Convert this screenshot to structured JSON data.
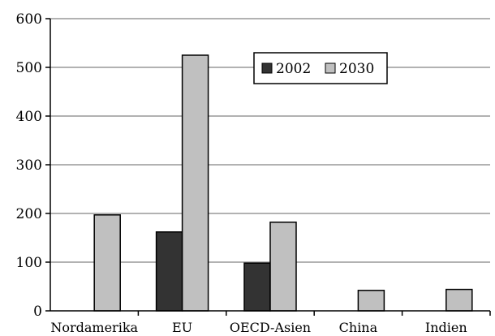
{
  "chart_data": {
    "type": "bar",
    "categories": [
      "Nordamerika",
      "EU",
      "OECD-Asien",
      "China",
      "Indien"
    ],
    "series": [
      {
        "name": "2002",
        "values": [
          0,
          162,
          98,
          0,
          0
        ],
        "color": "#333333"
      },
      {
        "name": "2030",
        "values": [
          197,
          525,
          182,
          42,
          44
        ],
        "color": "#c0c0c0"
      }
    ],
    "ylim": [
      0,
      600
    ],
    "yticks": [
      0,
      100,
      200,
      300,
      400,
      500,
      600
    ],
    "grid": true,
    "legend": "top-center"
  }
}
